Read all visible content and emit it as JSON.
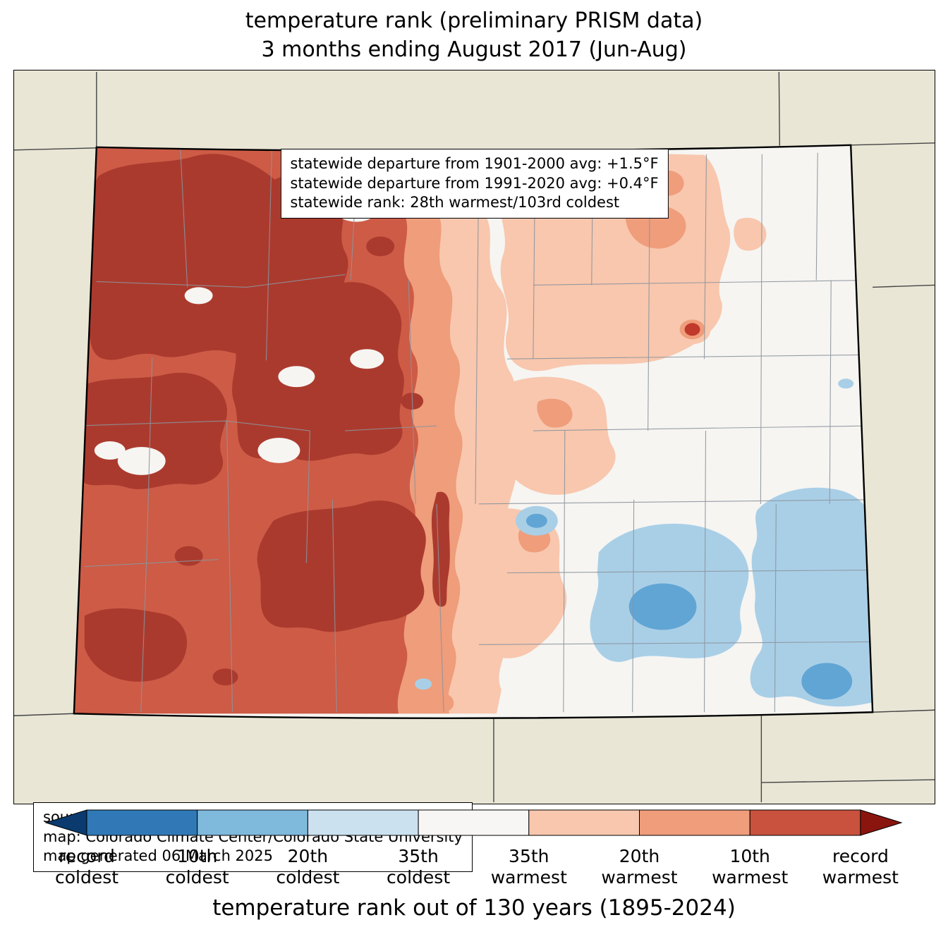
{
  "title": {
    "line1": "temperature rank (preliminary PRISM data)",
    "line2": "3 months ending August 2017 (Jun-Aug)"
  },
  "stats_box": {
    "line1": "statewide departure from 1901-2000 avg: +1.5°F",
    "line2": "statewide departure from 1991-2020 avg: +0.4°F",
    "line3": "statewide rank: 28th warmest/103rd coldest"
  },
  "source_box": {
    "line1": "source: PRISM Climate Group, Oregon State University",
    "line2": "map: Colorado Climate Center/Colorado State University",
    "line3": "map generated 06 March 2025"
  },
  "legend": {
    "caption": "temperature rank out of 130 years (1895-2024)",
    "bar_colors": [
      "#0a3a6e",
      "#3079b6",
      "#7fb9dc",
      "#cbe1f0",
      "#f7f6f4",
      "#f9c7ae",
      "#ef9d7b",
      "#c8523d",
      "#8a150e"
    ],
    "labels": [
      [
        "record",
        "coldest"
      ],
      [
        "10th",
        "coldest"
      ],
      [
        "20th",
        "coldest"
      ],
      [
        "35th",
        "coldest"
      ],
      [
        "35th",
        "warmest"
      ],
      [
        "20th",
        "warmest"
      ],
      [
        "10th",
        "warmest"
      ],
      [
        "record",
        "warmest"
      ]
    ]
  },
  "map_colors": {
    "background_land": "#e9e6d6",
    "neutral": "#f6f5f2",
    "warm_35": "#f8c7ae",
    "warm_20": "#ef9d7b",
    "warm_10": "#cd5b46",
    "warm_record_area": "#ab3a2e",
    "cool_35": "#a9cfe7",
    "cool_20": "#61a5d4",
    "hot_spot": "#c0392b",
    "county_line": "#8d949c",
    "state_border": "#000000",
    "neighbor_line": "#444444"
  }
}
